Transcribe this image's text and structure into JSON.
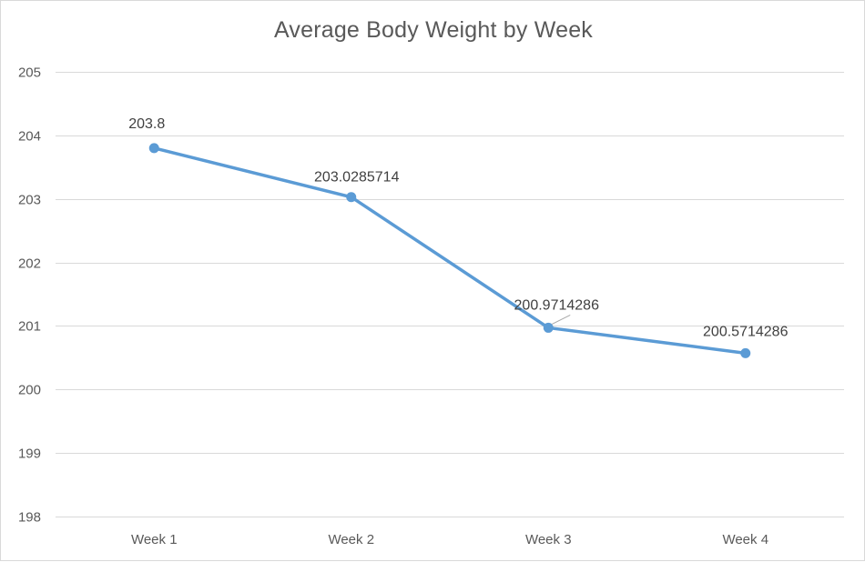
{
  "chart_data": {
    "type": "line",
    "title": "Average Body Weight by Week",
    "xlabel": "",
    "ylabel": "",
    "categories": [
      "Week 1",
      "Week 2",
      "Week 3",
      "Week 4"
    ],
    "series": [
      {
        "values": [
          203.8,
          203.0285714,
          200.9714286,
          200.5714286
        ],
        "color": "#5b9bd5"
      }
    ],
    "data_labels": [
      "203.8",
      "203.0285714",
      "200.9714286",
      "200.5714286"
    ],
    "ylim": [
      198,
      205
    ],
    "yticks": [
      198,
      199,
      200,
      201,
      202,
      203,
      204,
      205
    ],
    "grid": true,
    "legend": "none"
  }
}
